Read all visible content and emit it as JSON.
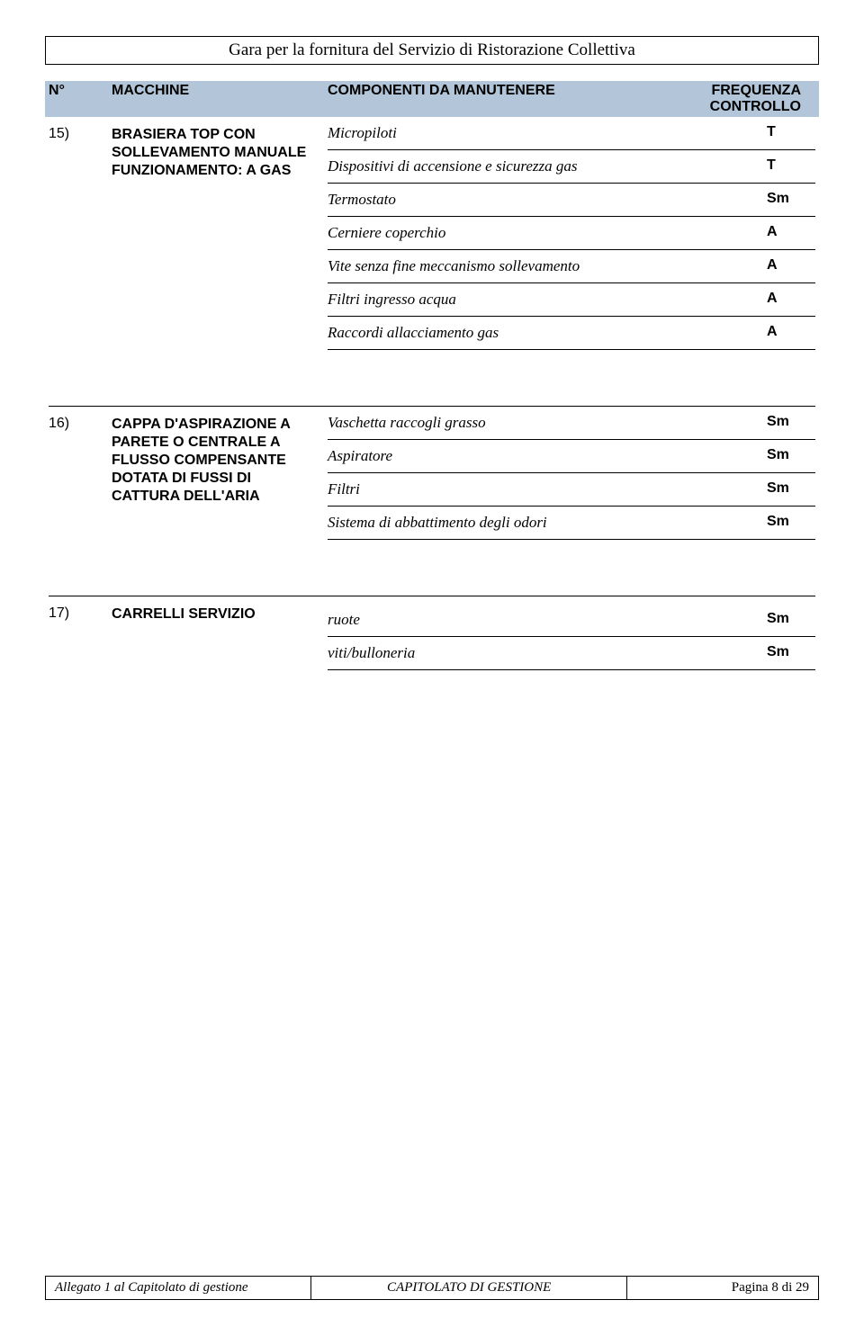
{
  "page_title": "Gara per la fornitura del Servizio di Ristorazione Collettiva",
  "header": {
    "n": "N°",
    "machine": "MACCHINE",
    "components": "COMPONENTI DA MANUTENERE",
    "frequency": "FREQUENZA CONTROLLO"
  },
  "sections": [
    {
      "num": "15)",
      "machine": "BRASIERA TOP CON SOLLEVAMENTO MANUALE FUNZIONAMENTO: A GAS",
      "rows": [
        {
          "label": "Micropiloti",
          "freq": "T"
        },
        {
          "label": "Dispositivi di accensione e sicurezza gas",
          "freq": "T"
        },
        {
          "label": "Termostato",
          "freq": "Sm"
        },
        {
          "label": "Cerniere coperchio",
          "freq": "A"
        },
        {
          "label": "Vite senza fine meccanismo sollevamento",
          "freq": "A"
        },
        {
          "label": "Filtri ingresso acqua",
          "freq": "A"
        },
        {
          "label": "Raccordi allacciamento gas",
          "freq": "A"
        }
      ]
    },
    {
      "num": "16)",
      "machine": "CAPPA D'ASPIRAZIONE A PARETE O CENTRALE A FLUSSO COMPENSANTE DOTATA DI FUSSI DI CATTURA DELL'ARIA",
      "rows": [
        {
          "label": "Vaschetta raccogli grasso",
          "freq": "Sm"
        },
        {
          "label": "Aspiratore",
          "freq": "Sm"
        },
        {
          "label": "Filtri",
          "freq": "Sm"
        },
        {
          "label": "Sistema di abbattimento degli odori",
          "freq": "Sm"
        }
      ]
    },
    {
      "num": "17)",
      "machine": "CARRELLI SERVIZIO",
      "rows": [
        {
          "label": "ruote",
          "freq": "Sm"
        },
        {
          "label": "viti/bulloneria",
          "freq": "Sm"
        }
      ]
    }
  ],
  "footer": {
    "left": "Allegato 1 al Capitolato di gestione",
    "mid": "CAPITOLATO DI GESTIONE",
    "right": "Pagina 8 di 29"
  },
  "colors": {
    "header_bg": "#b3c6d9",
    "text": "#000000",
    "bg": "#ffffff",
    "border": "#000000"
  }
}
